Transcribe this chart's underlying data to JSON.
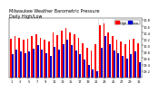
{
  "title": "Milwaukee Weather Barometric Pressure\nDaily High/Low",
  "title_fontsize": 3.5,
  "bar_width": 0.42,
  "ylim": [
    29.0,
    30.85
  ],
  "yticks": [
    29.2,
    29.4,
    29.6,
    29.8,
    30.0,
    30.2,
    30.4,
    30.6,
    30.8
  ],
  "ytick_fontsize": 2.5,
  "xtick_fontsize": 2.5,
  "background_color": "#ffffff",
  "high_color": "#ff0000",
  "low_color": "#0000cc",
  "legend_high": "High",
  "legend_low": "Low",
  "days": [
    1,
    2,
    3,
    4,
    5,
    6,
    7,
    8,
    9,
    10,
    11,
    12,
    13,
    14,
    15,
    16,
    17,
    18,
    19,
    20,
    21,
    22,
    23,
    24,
    25,
    26,
    27,
    28,
    29,
    30,
    31
  ],
  "high_vals": [
    30.2,
    30.28,
    30.25,
    30.18,
    30.22,
    30.3,
    30.35,
    30.25,
    30.18,
    30.12,
    30.4,
    30.32,
    30.45,
    30.55,
    30.42,
    30.35,
    30.25,
    30.08,
    29.92,
    29.85,
    30.05,
    30.62,
    30.68,
    30.42,
    30.28,
    30.18,
    30.12,
    30.05,
    30.18,
    30.22,
    30.08
  ],
  "low_vals": [
    29.72,
    29.88,
    29.82,
    29.75,
    29.82,
    29.9,
    30.02,
    29.88,
    29.75,
    29.68,
    29.95,
    29.88,
    30.05,
    30.18,
    30.0,
    29.85,
    29.72,
    29.55,
    29.38,
    29.25,
    29.18,
    29.92,
    30.28,
    30.05,
    29.85,
    29.75,
    29.68,
    29.58,
    29.72,
    29.8,
    29.48
  ],
  "vline_positions": [
    20.5,
    21.5
  ],
  "vline_color": "#aaaaaa",
  "vline_style": "dotted",
  "xtick_every": 2,
  "yaxis_right": true
}
